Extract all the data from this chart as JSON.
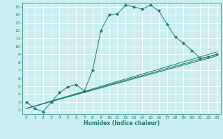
{
  "title": "",
  "xlabel": "Humidex (Indice chaleur)",
  "bg_color": "#cceef0",
  "line_color": "#1a7a6e",
  "grid_color": "#ffffff",
  "xlim": [
    -0.5,
    23.5
  ],
  "ylim": [
    1.5,
    15.5
  ],
  "xticks": [
    0,
    1,
    2,
    3,
    4,
    5,
    6,
    7,
    8,
    9,
    10,
    11,
    12,
    13,
    14,
    15,
    16,
    17,
    18,
    19,
    20,
    21,
    22,
    23
  ],
  "yticks": [
    2,
    3,
    4,
    5,
    6,
    7,
    8,
    9,
    10,
    11,
    12,
    13,
    14,
    15
  ],
  "series1_x": [
    0,
    1,
    2,
    3,
    4,
    5,
    6,
    7,
    8,
    9,
    10,
    11,
    12,
    13,
    14,
    15,
    16,
    17,
    18,
    19,
    20,
    21,
    22,
    23
  ],
  "series1_y": [
    3.0,
    2.2,
    1.8,
    3.0,
    4.2,
    4.9,
    5.2,
    4.4,
    7.0,
    12.0,
    14.0,
    14.1,
    15.2,
    15.0,
    14.7,
    15.2,
    14.5,
    12.8,
    11.2,
    10.4,
    9.5,
    8.5,
    8.7,
    9.0
  ],
  "series2_x": [
    0,
    23
  ],
  "series2_y": [
    2.2,
    8.8
  ],
  "series3_x": [
    0,
    23
  ],
  "series3_y": [
    2.2,
    9.0
  ],
  "series4_x": [
    0,
    23
  ],
  "series4_y": [
    2.2,
    9.3
  ],
  "tick_fontsize": 4.2,
  "xlabel_fontsize": 5.5,
  "linewidth": 0.7,
  "markersize": 2.2
}
